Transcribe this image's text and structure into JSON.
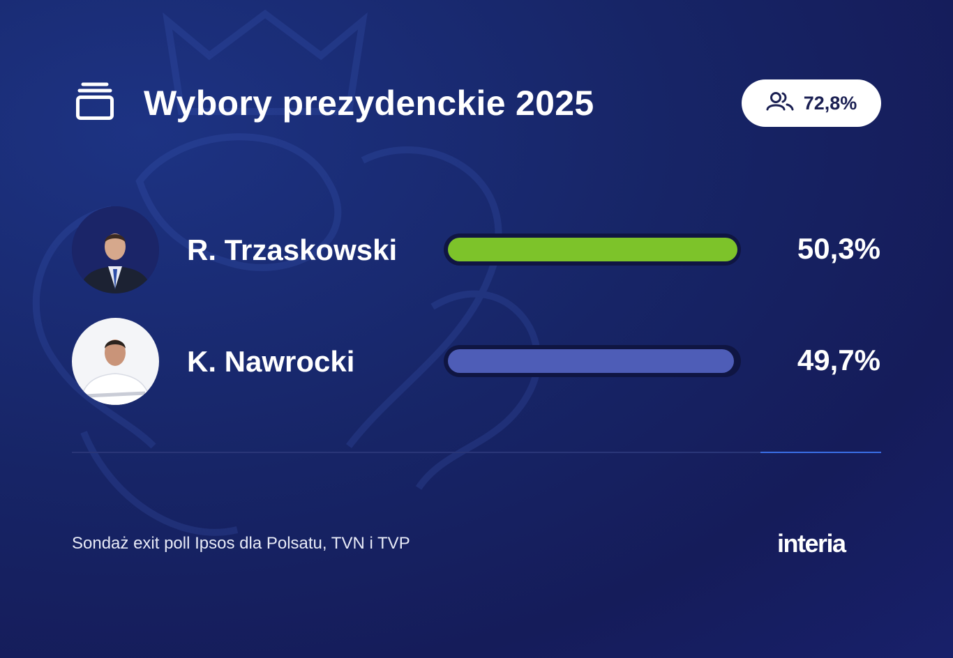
{
  "header": {
    "title": "Wybory prezydenckie 2025",
    "icon": "stack-icon",
    "turnout": {
      "icon": "people-icon",
      "value": "72,8%"
    }
  },
  "candidates": [
    {
      "name": "R. Trzaskowski",
      "percent_label": "50,3%",
      "percent": 50.3,
      "bar_color": "#7dc32a"
    },
    {
      "name": "K. Nawrocki",
      "percent_label": "49,7%",
      "percent": 49.7,
      "bar_color": "#4e5db7"
    }
  ],
  "footer": {
    "source": "Sondaż exit poll Ipsos dla Polsatu, TVN i TVP",
    "logo": "interia"
  }
}
